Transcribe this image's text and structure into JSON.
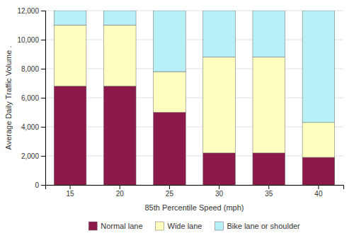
{
  "chart_data": {
    "type": "bar",
    "stacked": true,
    "categories": [
      "15",
      "20",
      "25",
      "30",
      "35",
      "40"
    ],
    "series": [
      {
        "name": "Normal lane",
        "color": "#8B1A4A",
        "values": [
          6800,
          6800,
          5000,
          2200,
          2200,
          1900
        ]
      },
      {
        "name": "Wide lane",
        "color": "#FFFFC0",
        "values": [
          4200,
          4200,
          2800,
          6600,
          6600,
          2400
        ]
      },
      {
        "name": "Bike lane or shoulder",
        "color": "#B8F0F8",
        "values": [
          1000,
          1000,
          4200,
          3200,
          3200,
          7700
        ]
      }
    ],
    "xlabel": "85th Percentile Speed (mph)",
    "ylabel": "Average Daily Traffic Volume  .",
    "ylim": [
      0,
      12000
    ],
    "yticks": [
      0,
      {
        "value": 2000,
        "label": "2,000"
      },
      {
        "value": 4000,
        "label": "4,000"
      },
      {
        "value": 6000,
        "label": "6,000"
      },
      {
        "value": 8000,
        "label": "8,000"
      },
      {
        "value": 10000,
        "label": "10,000"
      },
      {
        "value": 12000,
        "label": "12,000"
      }
    ],
    "grid": true,
    "legend": "bottom"
  }
}
